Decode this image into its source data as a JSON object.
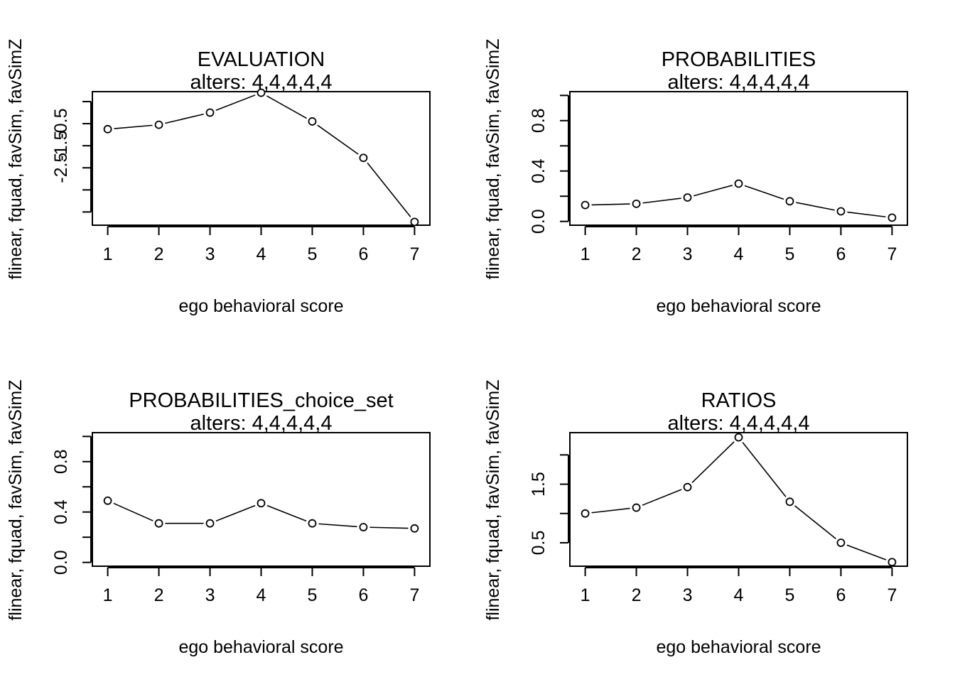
{
  "chart_data": [
    {
      "type": "line",
      "title": "EVALUATION",
      "subtitle": "alters: 4,4,4,4,4",
      "xlabel": "ego behavioral score",
      "ylabel": "flinear, fquad, favSim, favSimZ",
      "x": [
        1,
        2,
        3,
        4,
        5,
        6,
        7
      ],
      "series": [
        {
          "values": [
            -0.75,
            -0.55,
            0.0,
            0.9,
            -0.4,
            -2.05,
            -4.95
          ]
        }
      ],
      "ylim": [
        -5.1,
        0.95
      ],
      "yticks": [
        0.5,
        -0.5,
        -1.5,
        -2.5,
        -3.5,
        -4.5
      ],
      "ytick_labels": [
        "-0.5",
        "-1.5",
        "-2.5"
      ],
      "grid": false
    },
    {
      "type": "line",
      "title": "PROBABILITIES",
      "subtitle": "alters: 4,4,4,4,4",
      "xlabel": "ego behavioral score",
      "ylabel": "flinear, fquad, favSim, favSimZ",
      "x": [
        1,
        2,
        3,
        4,
        5,
        6,
        7
      ],
      "series": [
        {
          "values": [
            0.13,
            0.14,
            0.19,
            0.3,
            0.16,
            0.08,
            0.03
          ]
        }
      ],
      "ylim": [
        -0.03,
        1.03
      ],
      "yticks": [
        0.0,
        0.2,
        0.4,
        0.6,
        0.8,
        1.0
      ],
      "ytick_labels": [
        "0.0",
        "0.4",
        "0.8"
      ],
      "grid": false
    },
    {
      "type": "line",
      "title": "PROBABILITIES_choice_set",
      "subtitle": "alters: 4,4,4,4,4",
      "xlabel": "ego behavioral score",
      "ylabel": "flinear, fquad, favSim, favSimZ",
      "x": [
        1,
        2,
        3,
        4,
        5,
        6,
        7
      ],
      "series": [
        {
          "values": [
            0.49,
            0.31,
            0.31,
            0.47,
            0.31,
            0.28,
            0.27
          ]
        }
      ],
      "ylim": [
        -0.03,
        1.03
      ],
      "yticks": [
        0.0,
        0.2,
        0.4,
        0.6,
        0.8,
        1.0
      ],
      "ytick_labels": [
        "0.0",
        "0.4",
        "0.8"
      ],
      "grid": false
    },
    {
      "type": "line",
      "title": "RATIOS",
      "subtitle": "alters: 4,4,4,4,4",
      "xlabel": "ego behavioral score",
      "ylabel": "flinear, fquad, favSim, favSimZ",
      "x": [
        1,
        2,
        3,
        4,
        5,
        6,
        7
      ],
      "series": [
        {
          "values": [
            1.0,
            1.1,
            1.45,
            2.3,
            1.2,
            0.5,
            0.17
          ]
        }
      ],
      "ylim": [
        0.1,
        2.38
      ],
      "yticks": [
        0.5,
        1.0,
        1.5,
        2.0
      ],
      "ytick_labels": [
        "0.5",
        "1.5"
      ],
      "grid": false
    }
  ]
}
